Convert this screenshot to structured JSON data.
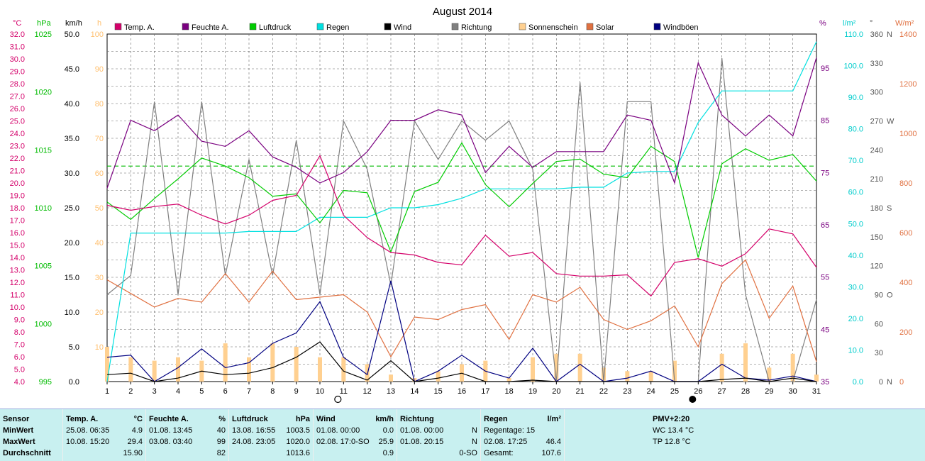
{
  "title": "August 2014",
  "legend": [
    {
      "label": "Temp. A.",
      "color": "#d4006a"
    },
    {
      "label": "Feuchte A.",
      "color": "#7a0080"
    },
    {
      "label": "Luftdruck",
      "color": "#00cc00"
    },
    {
      "label": "Regen",
      "color": "#00e0e0"
    },
    {
      "label": "Wind",
      "color": "#000000"
    },
    {
      "label": "Richtung",
      "color": "#808080"
    },
    {
      "label": "Sonnenschein",
      "color": "#ffd090"
    },
    {
      "label": "Solar",
      "color": "#e07040"
    },
    {
      "label": "Windböen",
      "color": "#000080"
    }
  ],
  "axis_units": {
    "temp": "°C",
    "pressure": "hPa",
    "wind": "km/h",
    "sun": "h",
    "humidity": "%",
    "rain": "l/m²",
    "dir": "°",
    "solar": "W/m²"
  },
  "chart_data": {
    "type": "line",
    "x": [
      1,
      2,
      3,
      4,
      5,
      6,
      7,
      8,
      9,
      10,
      11,
      12,
      13,
      14,
      15,
      16,
      17,
      18,
      19,
      20,
      21,
      22,
      23,
      24,
      25,
      26,
      27,
      28,
      29,
      30,
      31
    ],
    "series": [
      {
        "name": "Temp. A.",
        "axis": "temp",
        "color": "#d4006a",
        "values": [
          18.2,
          17.8,
          18.1,
          18.3,
          17.4,
          16.7,
          17.4,
          18.6,
          19.0,
          22.2,
          17.4,
          15.6,
          14.4,
          14.2,
          13.6,
          13.4,
          15.8,
          14.1,
          14.4,
          12.7,
          12.5,
          12.5,
          12.6,
          10.9,
          13.6,
          13.9,
          13.3,
          14.3,
          16.3,
          15.9,
          13.2
        ]
      },
      {
        "name": "Feuchte A.",
        "axis": "humidity",
        "color": "#7a0080",
        "values": [
          72,
          85,
          83,
          86,
          81,
          80,
          83,
          78,
          76,
          73,
          75,
          79,
          85,
          85,
          87,
          86,
          75,
          80,
          76,
          79,
          79,
          79,
          86,
          85,
          73,
          96,
          86,
          82,
          86,
          82,
          97
        ]
      },
      {
        "name": "Luftdruck",
        "axis": "pressure",
        "color": "#00cc00",
        "values": [
          1010.5,
          1009.0,
          1010.8,
          1012.5,
          1014.3,
          1013.6,
          1012.6,
          1011.0,
          1011.2,
          1008.7,
          1011.5,
          1011.3,
          1006.2,
          1011.4,
          1012.2,
          1015.6,
          1012.0,
          1010.1,
          1012.1,
          1014.0,
          1014.2,
          1012.9,
          1012.6,
          1015.3,
          1014.0,
          1005.7,
          1013.8,
          1015.1,
          1014.1,
          1014.6,
          1012.3
        ]
      },
      {
        "name": "Regen",
        "axis": "rain",
        "color": "#00e0e0",
        "values": [
          0,
          47,
          47,
          47,
          47,
          47,
          47.5,
          47.5,
          47.5,
          52,
          52,
          52,
          55,
          55,
          56,
          58,
          61,
          61,
          61,
          61,
          61.5,
          61.5,
          66,
          66.5,
          66.5,
          82,
          92,
          92,
          92,
          92,
          107.6
        ]
      },
      {
        "name": "Wind",
        "axis": "wind",
        "color": "#000000",
        "values": [
          1.0,
          1.2,
          0,
          0.5,
          1.5,
          1.0,
          1.2,
          2.0,
          3.5,
          5.7,
          1.5,
          0.2,
          3.0,
          0,
          0.5,
          1.2,
          0,
          0,
          0.2,
          0,
          0,
          0,
          0,
          0,
          0,
          0,
          0.3,
          0.5,
          0,
          0.5,
          0
        ]
      },
      {
        "name": "Windböen",
        "axis": "wind",
        "color": "#000080",
        "values": [
          3.5,
          3.8,
          0,
          2.0,
          4.7,
          2.0,
          2.7,
          5.5,
          7.0,
          11.5,
          3.5,
          1.0,
          14.5,
          0,
          1.5,
          3.8,
          1.5,
          0.5,
          4.8,
          0,
          2.5,
          0,
          0.5,
          1.5,
          0,
          0,
          2.5,
          0.5,
          0.2,
          0.8,
          0
        ]
      },
      {
        "name": "Richtung",
        "axis": "dir",
        "color": "#808080",
        "values": [
          90,
          110,
          290,
          90,
          290,
          110,
          230,
          110,
          250,
          90,
          270,
          220,
          100,
          270,
          230,
          270,
          250,
          270,
          220,
          0,
          310,
          0,
          290,
          290,
          0,
          0,
          335,
          90,
          0,
          0,
          85
        ]
      },
      {
        "name": "Solar",
        "axis": "solar",
        "color": "#e07040",
        "values": [
          410,
          355,
          300,
          335,
          320,
          435,
          320,
          445,
          330,
          340,
          350,
          280,
          100,
          260,
          250,
          290,
          310,
          170,
          350,
          320,
          380,
          250,
          210,
          245,
          305,
          140,
          395,
          490,
          255,
          385,
          80
        ]
      },
      {
        "name": "Sonnenschein",
        "axis": "sun",
        "type": "bar",
        "color": "#ffd090",
        "values": [
          10,
          7,
          6,
          7,
          6,
          11,
          7,
          11,
          10,
          7,
          7,
          5,
          2,
          1,
          3,
          5,
          6,
          1,
          7,
          8,
          8,
          4,
          3,
          3,
          6,
          0,
          8,
          11,
          4,
          8,
          2
        ]
      }
    ],
    "axes": {
      "temp": {
        "label": "°C",
        "ylim": [
          4.0,
          32.0
        ]
      },
      "pressure": {
        "label": "hPa",
        "ylim": [
          995,
          1025
        ]
      },
      "wind": {
        "label": "km/h",
        "ylim": [
          0.0,
          50.0
        ]
      },
      "sun": {
        "label": "h",
        "ylim": [
          0,
          100
        ]
      },
      "humidity": {
        "label": "%",
        "ticks": [
          45,
          55,
          65,
          75,
          85,
          95
        ]
      },
      "rain": {
        "label": "l/m²",
        "ylim": [
          0,
          110
        ]
      },
      "dir": {
        "label": "°",
        "ylim": [
          0,
          360
        ]
      },
      "solar": {
        "label": "W/m²",
        "ylim": [
          0,
          1400
        ]
      }
    },
    "reference_line": {
      "axis": "pressure",
      "value": 1013.6,
      "color": "#00bb00"
    },
    "grid": true,
    "moon_markers": [
      {
        "day": 11,
        "phase": "full"
      },
      {
        "day": 26,
        "phase": "new"
      }
    ]
  },
  "stats": {
    "sensor": {
      "title": "Sensor",
      "rows": [
        "MinWert",
        "MaxWert",
        "Durchschnitt"
      ]
    },
    "temp": {
      "title": "Temp. A.",
      "unit": "°C",
      "min_date": "25.08.",
      "min_time": "06:35",
      "min": "4.9",
      "max_date": "10.08.",
      "max_time": "15:20",
      "max": "29.4",
      "avg": "15.90"
    },
    "feuchte": {
      "title": "Feuchte A.",
      "unit": "%",
      "min_date": "01.08.",
      "min_time": "13:45",
      "min": "40",
      "max_date": "03.08.",
      "max_time": "03:40",
      "max": "99",
      "avg": "82"
    },
    "luftdruck": {
      "title": "Luftdruck",
      "unit": "hPa",
      "min_date": "13.08.",
      "min_time": "16:55",
      "min": "1003.5",
      "max_date": "24.08.",
      "max_time": "23:05",
      "max": "1020.0",
      "avg": "1013.6"
    },
    "wind": {
      "title": "Wind",
      "unit": "km/h",
      "min_date": "01.08.",
      "min_time": "00:00",
      "min": "0.0",
      "max_date": "02.08.",
      "max_time": "17:0-SO",
      "max": "25.9",
      "avg": "0.9"
    },
    "richtung": {
      "title": "Richtung",
      "min_date": "01.08.",
      "min_time": "00:00",
      "min": "N",
      "max_date": "01.08.",
      "max_time": "20:15",
      "max": "N",
      "avg": "0-SO"
    },
    "regen": {
      "title": "Regen",
      "unit": "l/m²",
      "days_label": "Regentage: 15",
      "max_date": "02.08.",
      "max_time": "17:25",
      "max": "46.4",
      "total_label": "Gesamt:",
      "total": "107.6"
    },
    "pmv": {
      "title": "PMV+2:20",
      "wc": "WC 13.4 °C",
      "tp": "TP 12.8 °C"
    }
  }
}
